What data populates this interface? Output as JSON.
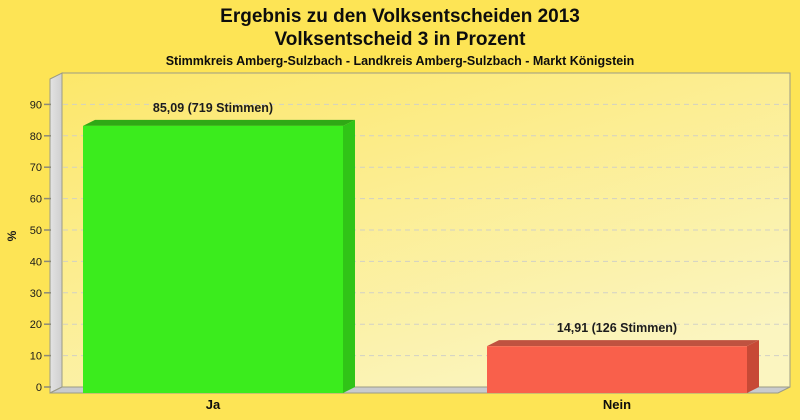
{
  "header": {
    "title": "Ergebnis zu den Volksentscheiden 2013",
    "subtitle": "Volksentscheid 3 in Prozent",
    "caption": "Stimmkreis Amberg-Sulzbach - Landkreis Amberg-Sulzbach - Markt Königstein"
  },
  "chart_data": {
    "type": "bar",
    "style": "3d-vertical-bars",
    "title": "Ergebnis zu den Volksentscheiden 2013",
    "subtitle": "Volksentscheid 3 in Prozent",
    "caption": "Stimmkreis Amberg-Sulzbach - Landkreis Amberg-Sulzbach - Markt Königstein",
    "categories": [
      "Ja",
      "Nein"
    ],
    "values": [
      85.09,
      14.91
    ],
    "votes": [
      719,
      126
    ],
    "value_labels": [
      "85,09 (719 Stimmen)",
      "14,91 (126 Stimmen)"
    ],
    "xlabel": "",
    "ylabel": "%",
    "ylim": [
      0,
      100
    ],
    "yticks": [
      0,
      10,
      20,
      30,
      40,
      50,
      60,
      70,
      80,
      90
    ],
    "grid": "horizontal-dashed",
    "legend": "none",
    "bar_colors": [
      {
        "front": "#3BEC1D",
        "top": "#2FA915",
        "side": "#30C417"
      },
      {
        "front": "#F9604B",
        "top": "#BF5240",
        "side": "#C74936"
      }
    ],
    "colors": {
      "page_background": "#FDE455",
      "plot_background_top": "#FCE76A",
      "plot_background_bottom": "#FBF5C0",
      "wall": "#D8D8D8",
      "floor": "#C9CBCE",
      "frame_border": "#9B9B85",
      "gridline": "#CFCFC8",
      "tick": "#8A8A7A",
      "text": "#1A1A1A"
    }
  }
}
